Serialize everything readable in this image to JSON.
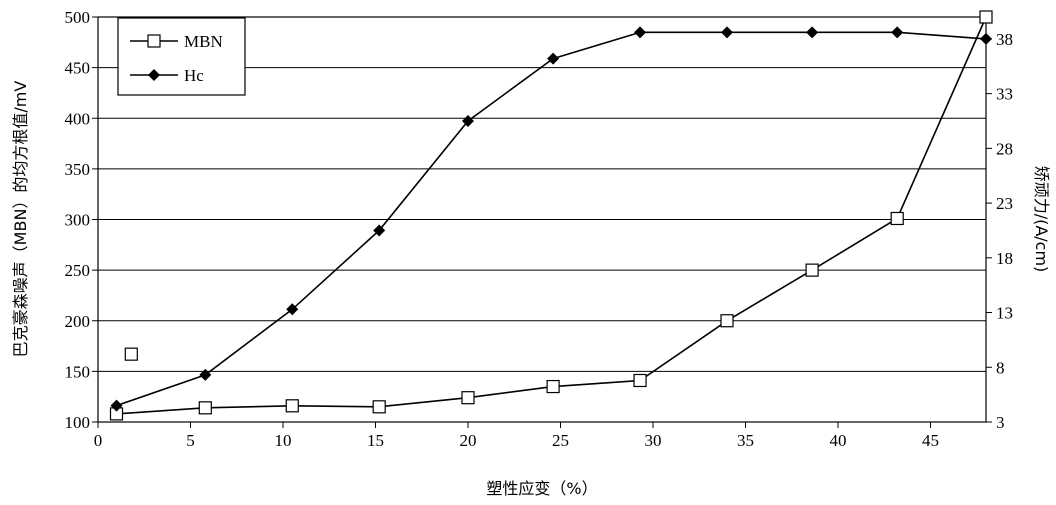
{
  "chart_data": {
    "type": "line",
    "xlabel": "塑性应变（%）",
    "ylabel": "巴克豪森噪声（MBN）的均方根值/mV",
    "y2label": "矫顽力/(A/cm)",
    "xlim": [
      0,
      48
    ],
    "ylim": [
      100,
      500
    ],
    "y2lim": [
      3,
      40
    ],
    "x_ticks": [
      0,
      5,
      10,
      15,
      20,
      25,
      30,
      35,
      40,
      45
    ],
    "y_ticks": [
      100,
      150,
      200,
      250,
      300,
      350,
      400,
      450,
      500
    ],
    "y2_ticks": [
      3,
      8,
      13,
      18,
      23,
      28,
      33,
      38
    ],
    "grid": "horizontal",
    "legend_position": "top-left",
    "series": [
      {
        "name": "MBN",
        "axis": "left",
        "marker": "open-square",
        "color": "#000000",
        "x": [
          1.0,
          5.8,
          10.5,
          15.2,
          20.0,
          24.6,
          29.3,
          34.0,
          38.6,
          43.2,
          48.0
        ],
        "y": [
          108,
          114,
          116,
          115,
          124,
          135,
          141,
          200,
          250,
          301,
          500
        ]
      },
      {
        "name": "Hc",
        "axis": "right",
        "marker": "filled-diamond",
        "color": "#000000",
        "x": [
          1.0,
          5.8,
          10.5,
          15.2,
          20.0,
          24.6,
          29.3,
          34.0,
          38.6,
          43.2,
          48.0
        ],
        "y": [
          4.5,
          7.3,
          13.3,
          20.5,
          30.5,
          36.2,
          38.6,
          38.6,
          38.6,
          38.6,
          38.0
        ]
      }
    ],
    "stray_marker": {
      "shape": "open-square",
      "x": 1.8,
      "y": 167
    }
  }
}
